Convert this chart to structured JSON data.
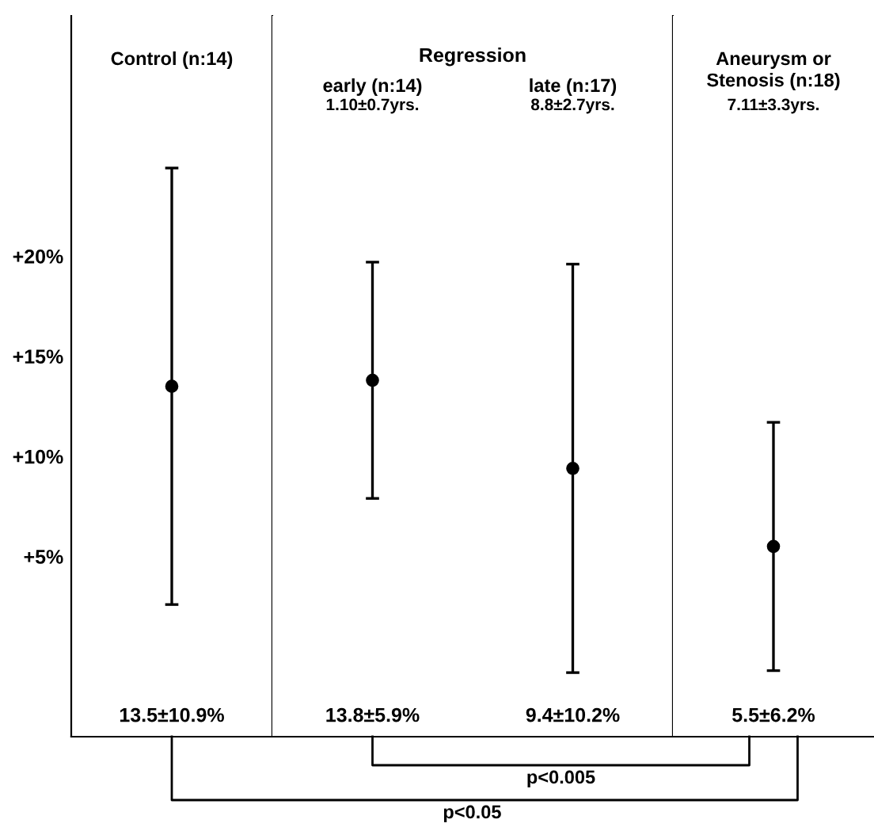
{
  "chart_data": [
    {
      "type": "scatter",
      "categories": [
        "Control (n:14)"
      ],
      "values": [
        13.5
      ],
      "errors": [
        10.9
      ],
      "color": "#000000",
      "marker": "circle",
      "ylim": [
        -4,
        32
      ],
      "yticks": [
        {
          "value": 5,
          "label": "+5%"
        },
        {
          "value": 10,
          "label": "+10%"
        },
        {
          "value": 15,
          "label": "+15%"
        },
        {
          "value": 20,
          "label": "+20%"
        }
      ],
      "tick_labels": "y",
      "grid": false,
      "annotations": [
        "13.5±10.9%"
      ]
    },
    {
      "type": "scatter",
      "title": "Regression",
      "categories": [
        "early (n:14)",
        "late (n:17)"
      ],
      "values": [
        13.8,
        9.4
      ],
      "errors": [
        5.9,
        10.2
      ],
      "color": "#000000",
      "marker": "circle",
      "ylim": [
        -4,
        32
      ],
      "tick_labels": false,
      "grid": false,
      "annotations": [
        "1.10±0.7yrs.",
        "8.8±2.7yrs.",
        "13.8±5.9%",
        "9.4±10.2%"
      ]
    },
    {
      "type": "scatter",
      "categories": [
        "Aneurysm or\nStenosis (n:18)"
      ],
      "values": [
        5.5
      ],
      "errors": [
        6.2
      ],
      "color": "#000000",
      "marker": "circle",
      "ylim": [
        -4,
        32
      ],
      "tick_labels": false,
      "grid": false,
      "annotations": [
        "7.11±3.3yrs.",
        "5.5±6.2%",
        "p<0.05",
        "p<0.005"
      ]
    }
  ]
}
